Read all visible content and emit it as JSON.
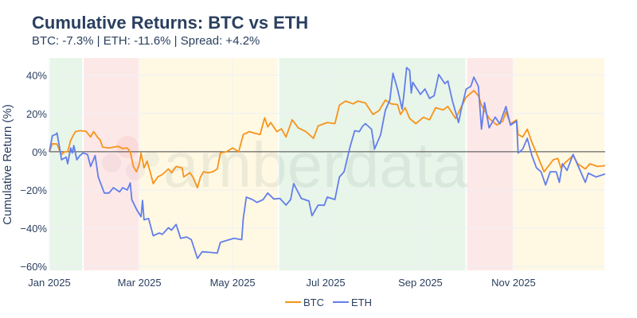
{
  "chart_data": {
    "type": "line",
    "title": "Cumulative Returns: BTC vs ETH",
    "subtitle": "BTC: -7.3% | ETH: -11.6% | Spread: +4.2%",
    "xlabel": "",
    "ylabel": "Cumulative Return (%)",
    "xlim": [
      "2025-01-01",
      "2025-12-31"
    ],
    "ylim": [
      -62,
      49
    ],
    "grid": true,
    "legend_position": "bottom",
    "x_ticks": [
      {
        "date": "2025-01-01",
        "label": "Jan 2025"
      },
      {
        "date": "2025-03-01",
        "label": "Mar 2025"
      },
      {
        "date": "2025-05-01",
        "label": "May 2025"
      },
      {
        "date": "2025-07-01",
        "label": "Jul 2025"
      },
      {
        "date": "2025-09-01",
        "label": "Sep 2025"
      },
      {
        "date": "2025-11-01",
        "label": "Nov 2025"
      }
    ],
    "y_ticks": [
      {
        "value": 40,
        "label": "40%"
      },
      {
        "value": 20,
        "label": "20%"
      },
      {
        "value": 0,
        "label": "0%"
      },
      {
        "value": -20,
        "label": "−20%"
      },
      {
        "value": -40,
        "label": "−40%"
      },
      {
        "value": -60,
        "label": "−60%"
      }
    ],
    "zero_line": 0,
    "shaded_regions": [
      {
        "start": "2025-01-01",
        "end": "2025-01-22",
        "color": "#e8f5e9"
      },
      {
        "start": "2025-01-23",
        "end": "2025-02-28",
        "color": "#fde8e8"
      },
      {
        "start": "2025-03-01",
        "end": "2025-05-30",
        "color": "#fff8e3"
      },
      {
        "start": "2025-05-31",
        "end": "2025-09-30",
        "color": "#e8f5e9"
      },
      {
        "start": "2025-10-01",
        "end": "2025-10-31",
        "color": "#fde8e8"
      },
      {
        "start": "2025-11-01",
        "end": "2025-12-31",
        "color": "#fff8e3"
      }
    ],
    "series": [
      {
        "name": "BTC",
        "color": "#f7931a",
        "points": [
          [
            "2025-01-01",
            0
          ],
          [
            "2025-01-03",
            4.2
          ],
          [
            "2025-01-06",
            4
          ],
          [
            "2025-01-08",
            0
          ],
          [
            "2025-01-09",
            -1.4
          ],
          [
            "2025-01-11",
            0
          ],
          [
            "2025-01-13",
            0
          ],
          [
            "2025-01-15",
            6
          ],
          [
            "2025-01-18",
            10.5
          ],
          [
            "2025-01-21",
            11
          ],
          [
            "2025-01-25",
            10.7
          ],
          [
            "2025-01-28",
            7.7
          ],
          [
            "2025-01-30",
            10.5
          ],
          [
            "2025-02-02",
            7
          ],
          [
            "2025-02-03",
            6.5
          ],
          [
            "2025-02-05",
            2.4
          ],
          [
            "2025-02-09",
            2
          ],
          [
            "2025-02-15",
            2.8
          ],
          [
            "2025-02-18",
            1.7
          ],
          [
            "2025-02-21",
            2
          ],
          [
            "2025-02-23",
            0
          ],
          [
            "2025-02-25",
            -7.7
          ],
          [
            "2025-02-27",
            -10.5
          ],
          [
            "2025-03-01",
            -6.3
          ],
          [
            "2025-03-02",
            -0.7
          ],
          [
            "2025-03-04",
            -8.4
          ],
          [
            "2025-03-06",
            -4.9
          ],
          [
            "2025-03-08",
            -10.5
          ],
          [
            "2025-03-10",
            -16.7
          ],
          [
            "2025-03-13",
            -13.2
          ],
          [
            "2025-03-16",
            -11.9
          ],
          [
            "2025-03-20",
            -9
          ],
          [
            "2025-03-22",
            -11
          ],
          [
            "2025-03-25",
            -7.7
          ],
          [
            "2025-03-29",
            -8.4
          ],
          [
            "2025-03-30",
            -13.2
          ],
          [
            "2025-04-03",
            -11
          ],
          [
            "2025-04-05",
            -13.2
          ],
          [
            "2025-04-08",
            -18.8
          ],
          [
            "2025-04-10",
            -13.2
          ],
          [
            "2025-04-12",
            -10.5
          ],
          [
            "2025-04-15",
            -11
          ],
          [
            "2025-04-18",
            -10.5
          ],
          [
            "2025-04-21",
            -9
          ],
          [
            "2025-04-23",
            -0.7
          ],
          [
            "2025-04-27",
            0
          ],
          [
            "2025-05-01",
            2
          ],
          [
            "2025-05-05",
            0
          ],
          [
            "2025-05-08",
            9
          ],
          [
            "2025-05-12",
            10.5
          ],
          [
            "2025-05-15",
            9.8
          ],
          [
            "2025-05-19",
            9
          ],
          [
            "2025-05-22",
            17.7
          ],
          [
            "2025-05-24",
            13
          ],
          [
            "2025-05-26",
            15.3
          ],
          [
            "2025-05-30",
            10.5
          ],
          [
            "2025-06-02",
            12
          ],
          [
            "2025-06-05",
            7.7
          ],
          [
            "2025-06-09",
            16.7
          ],
          [
            "2025-06-13",
            12.5
          ],
          [
            "2025-06-18",
            10.5
          ],
          [
            "2025-06-23",
            7
          ],
          [
            "2025-06-26",
            13.5
          ],
          [
            "2025-07-02",
            15.3
          ],
          [
            "2025-07-07",
            14.7
          ],
          [
            "2025-07-10",
            24.4
          ],
          [
            "2025-07-14",
            26.5
          ],
          [
            "2025-07-19",
            25
          ],
          [
            "2025-07-22",
            26.5
          ],
          [
            "2025-07-27",
            25.5
          ],
          [
            "2025-08-01",
            19.5
          ],
          [
            "2025-08-05",
            21.6
          ],
          [
            "2025-08-09",
            27
          ],
          [
            "2025-08-13",
            25
          ],
          [
            "2025-08-17",
            24.7
          ],
          [
            "2025-08-19",
            19.5
          ],
          [
            "2025-08-22",
            23
          ],
          [
            "2025-08-25",
            17.4
          ],
          [
            "2025-08-29",
            14.7
          ],
          [
            "2025-09-03",
            18
          ],
          [
            "2025-09-07",
            16.7
          ],
          [
            "2025-09-11",
            23
          ],
          [
            "2025-09-16",
            21.9
          ],
          [
            "2025-09-19",
            23.7
          ],
          [
            "2025-09-24",
            17.4
          ],
          [
            "2025-10-01",
            28.6
          ],
          [
            "2025-10-06",
            32
          ],
          [
            "2025-10-09",
            29.3
          ],
          [
            "2025-10-11",
            24.4
          ],
          [
            "2025-10-16",
            17.4
          ],
          [
            "2025-10-21",
            14
          ],
          [
            "2025-10-25",
            16
          ],
          [
            "2025-10-27",
            21
          ],
          [
            "2025-10-30",
            14.6
          ],
          [
            "2025-11-03",
            16.7
          ],
          [
            "2025-11-04",
            9
          ],
          [
            "2025-11-07",
            7.7
          ],
          [
            "2025-11-10",
            11.8
          ],
          [
            "2025-11-13",
            4.9
          ],
          [
            "2025-11-16",
            -0.7
          ],
          [
            "2025-11-21",
            -10.5
          ],
          [
            "2025-11-27",
            -4.2
          ],
          [
            "2025-11-30",
            -3.5
          ],
          [
            "2025-12-02",
            -8.4
          ],
          [
            "2025-12-05",
            -5.6
          ],
          [
            "2025-12-10",
            -2
          ],
          [
            "2025-12-13",
            -6.3
          ],
          [
            "2025-12-18",
            -9
          ],
          [
            "2025-12-21",
            -6.3
          ],
          [
            "2025-12-26",
            -7.7
          ],
          [
            "2025-12-31",
            -7.3
          ]
        ]
      },
      {
        "name": "ETH",
        "color": "#627eea",
        "points": [
          [
            "2025-01-01",
            0
          ],
          [
            "2025-01-03",
            8.4
          ],
          [
            "2025-01-05",
            9
          ],
          [
            "2025-01-06",
            9.8
          ],
          [
            "2025-01-08",
            0.7
          ],
          [
            "2025-01-09",
            -4.2
          ],
          [
            "2025-01-12",
            -2.8
          ],
          [
            "2025-01-13",
            -6.3
          ],
          [
            "2025-01-15",
            2
          ],
          [
            "2025-01-16",
            -0.7
          ],
          [
            "2025-01-17",
            3.2
          ],
          [
            "2025-01-19",
            -4.2
          ],
          [
            "2025-01-21",
            -2
          ],
          [
            "2025-01-23",
            -0.7
          ],
          [
            "2025-01-26",
            -1.4
          ],
          [
            "2025-01-28",
            -7.7
          ],
          [
            "2025-01-31",
            -2
          ],
          [
            "2025-02-02",
            -13.2
          ],
          [
            "2025-02-06",
            -21.6
          ],
          [
            "2025-02-09",
            -21.6
          ],
          [
            "2025-02-12",
            -18.8
          ],
          [
            "2025-02-16",
            -21
          ],
          [
            "2025-02-18",
            -18.8
          ],
          [
            "2025-02-21",
            -20
          ],
          [
            "2025-02-23",
            -16.3
          ],
          [
            "2025-02-24",
            -25
          ],
          [
            "2025-02-27",
            -30
          ],
          [
            "2025-03-02",
            -34
          ],
          [
            "2025-03-03",
            -25.5
          ],
          [
            "2025-03-04",
            -35.6
          ],
          [
            "2025-03-07",
            -34.9
          ],
          [
            "2025-03-10",
            -43.9
          ],
          [
            "2025-03-14",
            -42.5
          ],
          [
            "2025-03-16",
            -43.2
          ],
          [
            "2025-03-20",
            -39.7
          ],
          [
            "2025-03-22",
            -41
          ],
          [
            "2025-03-25",
            -38
          ],
          [
            "2025-03-28",
            -45.3
          ],
          [
            "2025-04-01",
            -44.6
          ],
          [
            "2025-04-04",
            -46
          ],
          [
            "2025-04-08",
            -55.8
          ],
          [
            "2025-04-11",
            -52.3
          ],
          [
            "2025-04-16",
            -52.6
          ],
          [
            "2025-04-21",
            -53
          ],
          [
            "2025-04-23",
            -47.4
          ],
          [
            "2025-04-27",
            -46.4
          ],
          [
            "2025-05-02",
            -45.3
          ],
          [
            "2025-05-07",
            -46
          ],
          [
            "2025-05-08",
            -34.9
          ],
          [
            "2025-05-10",
            -23.7
          ],
          [
            "2025-05-14",
            -25
          ],
          [
            "2025-05-17",
            -26.5
          ],
          [
            "2025-05-21",
            -25
          ],
          [
            "2025-05-24",
            -21.6
          ],
          [
            "2025-05-28",
            -24.7
          ],
          [
            "2025-06-01",
            -24.4
          ],
          [
            "2025-06-05",
            -27.9
          ],
          [
            "2025-06-08",
            -25
          ],
          [
            "2025-06-10",
            -16.7
          ],
          [
            "2025-06-15",
            -24.4
          ],
          [
            "2025-06-20",
            -25.8
          ],
          [
            "2025-06-22",
            -33.5
          ],
          [
            "2025-06-26",
            -27.9
          ],
          [
            "2025-06-30",
            -28
          ],
          [
            "2025-07-02",
            -23.7
          ],
          [
            "2025-07-07",
            -25
          ],
          [
            "2025-07-10",
            -13.2
          ],
          [
            "2025-07-13",
            -10.5
          ],
          [
            "2025-07-17",
            2.8
          ],
          [
            "2025-07-20",
            11
          ],
          [
            "2025-07-23",
            10.5
          ],
          [
            "2025-07-25",
            13.2
          ],
          [
            "2025-07-27",
            14.7
          ],
          [
            "2025-07-31",
            11.8
          ],
          [
            "2025-08-02",
            1.4
          ],
          [
            "2025-08-06",
            9
          ],
          [
            "2025-08-09",
            21.6
          ],
          [
            "2025-08-12",
            27
          ],
          [
            "2025-08-14",
            41
          ],
          [
            "2025-08-17",
            32.8
          ],
          [
            "2025-08-20",
            22.3
          ],
          [
            "2025-08-21",
            28.6
          ],
          [
            "2025-08-23",
            44
          ],
          [
            "2025-08-25",
            42.5
          ],
          [
            "2025-08-26",
            30.7
          ],
          [
            "2025-08-27",
            36.3
          ],
          [
            "2025-09-01",
            30
          ],
          [
            "2025-09-04",
            32.8
          ],
          [
            "2025-09-07",
            27.9
          ],
          [
            "2025-09-10",
            29.3
          ],
          [
            "2025-09-13",
            40.4
          ],
          [
            "2025-09-17",
            35.6
          ],
          [
            "2025-09-19",
            37
          ],
          [
            "2025-09-22",
            26.5
          ],
          [
            "2025-09-26",
            15.3
          ],
          [
            "2025-09-28",
            23
          ],
          [
            "2025-10-01",
            32.8
          ],
          [
            "2025-10-04",
            34.2
          ],
          [
            "2025-10-06",
            39
          ],
          [
            "2025-10-09",
            34.2
          ],
          [
            "2025-10-11",
            11.8
          ],
          [
            "2025-10-13",
            25.7
          ],
          [
            "2025-10-16",
            12.5
          ],
          [
            "2025-10-20",
            18.1
          ],
          [
            "2025-10-23",
            14.6
          ],
          [
            "2025-10-27",
            23.7
          ],
          [
            "2025-10-30",
            13.9
          ],
          [
            "2025-11-03",
            16
          ],
          [
            "2025-11-04",
            -0.7
          ],
          [
            "2025-11-07",
            1.4
          ],
          [
            "2025-11-10",
            7
          ],
          [
            "2025-11-13",
            -2
          ],
          [
            "2025-11-16",
            -8.4
          ],
          [
            "2025-11-19",
            -10.5
          ],
          [
            "2025-11-22",
            -17.4
          ],
          [
            "2025-11-25",
            -10.5
          ],
          [
            "2025-11-29",
            -10.5
          ],
          [
            "2025-12-01",
            -16
          ],
          [
            "2025-12-03",
            -6.3
          ],
          [
            "2025-12-06",
            -9.8
          ],
          [
            "2025-12-10",
            -1.4
          ],
          [
            "2025-12-15",
            -10.5
          ],
          [
            "2025-12-18",
            -16
          ],
          [
            "2025-12-20",
            -11.2
          ],
          [
            "2025-12-25",
            -13.2
          ],
          [
            "2025-12-31",
            -11.6
          ]
        ]
      }
    ]
  },
  "watermark": {
    "text": "amberdata"
  }
}
